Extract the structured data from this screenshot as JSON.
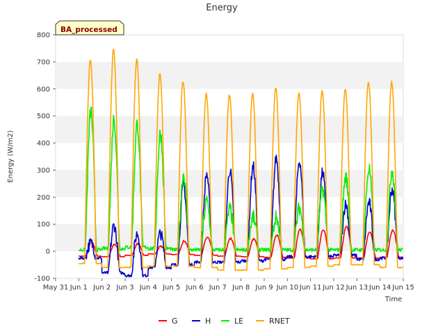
{
  "chart_data": {
    "type": "line",
    "title": "Energy",
    "xlabel": "Time",
    "ylabel": "Energy (W/m2)",
    "badge": "BA_processed",
    "x_ticks": [
      "May 31",
      "Jun 1",
      "Jun 2",
      "Jun 3",
      "Jun 4",
      "Jun 5",
      "Jun 6",
      "Jun 7",
      "Jun 8",
      "Jun 9",
      "Jun 10",
      "Jun 11",
      "Jun 12",
      "Jun 13",
      "Jun 14",
      "Jun 15"
    ],
    "xlim": [
      "May 31",
      "Jun 15"
    ],
    "y_ticks": [
      -100,
      0,
      100,
      200,
      300,
      400,
      500,
      600,
      700,
      800
    ],
    "ylim": [
      -100,
      800
    ],
    "legend_position": "bottom",
    "grid": "horizontal bands",
    "days": [
      "Jun 1",
      "Jun 2",
      "Jun 3",
      "Jun 4",
      "Jun 5",
      "Jun 6",
      "Jun 7",
      "Jun 8",
      "Jun 9",
      "Jun 10",
      "Jun 11",
      "Jun 12",
      "Jun 13",
      "Jun 14"
    ],
    "series": [
      {
        "name": "G",
        "color": "#ff0000",
        "night": [
          -18,
          -20,
          -15,
          -10,
          -12,
          -15,
          -18,
          -20,
          -22,
          -25,
          -28,
          -25,
          -25,
          -22
        ],
        "peak": [
          32,
          25,
          28,
          18,
          38,
          52,
          48,
          45,
          60,
          80,
          80,
          92,
          72,
          78
        ]
      },
      {
        "name": "H",
        "color": "#0000cc",
        "night": [
          -25,
          -80,
          -90,
          -60,
          -50,
          -40,
          -40,
          -35,
          -30,
          -20,
          -20,
          -15,
          -30,
          -25
        ],
        "peak": [
          30,
          95,
          65,
          65,
          245,
          285,
          300,
          315,
          345,
          335,
          290,
          175,
          180,
          230
        ]
      },
      {
        "name": "LE",
        "color": "#00ee00",
        "night": [
          5,
          10,
          15,
          10,
          5,
          5,
          5,
          5,
          5,
          5,
          5,
          5,
          5,
          5
        ],
        "peak": [
          520,
          490,
          470,
          435,
          285,
          185,
          155,
          125,
          125,
          160,
          230,
          275,
          305,
          300
        ]
      },
      {
        "name": "RNET",
        "color": "#ffa500",
        "night": [
          -45,
          -60,
          -60,
          -55,
          -55,
          -60,
          -70,
          -70,
          -65,
          -60,
          -55,
          -50,
          -50,
          -60
        ],
        "peak": [
          710,
          745,
          710,
          655,
          630,
          580,
          578,
          580,
          605,
          585,
          595,
          600,
          625,
          625
        ]
      }
    ]
  }
}
